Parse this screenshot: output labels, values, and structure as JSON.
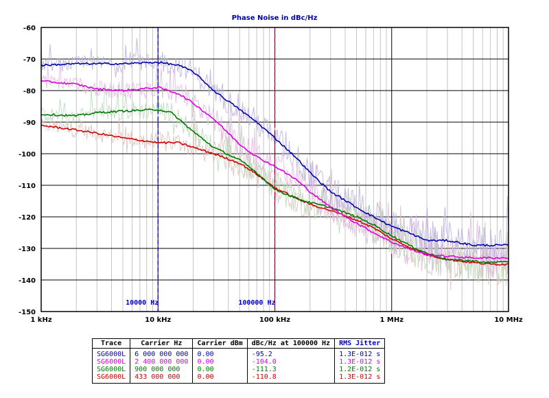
{
  "chart_data": {
    "type": "line",
    "title": "Phase Noise in dBc/Hz",
    "x_scale": "log",
    "xlim": [
      1000,
      10000000
    ],
    "ylim": [
      -150,
      -60
    ],
    "x_ticks": [
      {
        "value": 1000,
        "label": "1 kHz"
      },
      {
        "value": 10000,
        "label": "10 kHz"
      },
      {
        "value": 100000,
        "label": "100 kHz"
      },
      {
        "value": 1000000,
        "label": "1 MHz"
      },
      {
        "value": 10000000,
        "label": "10 MHz"
      }
    ],
    "y_ticks": [
      {
        "value": -60,
        "label": "-60"
      },
      {
        "value": -70,
        "label": "-70"
      },
      {
        "value": -80,
        "label": "-80"
      },
      {
        "value": -90,
        "label": "-90"
      },
      {
        "value": -100,
        "label": "-100"
      },
      {
        "value": -110,
        "label": "-110"
      },
      {
        "value": -120,
        "label": "-120"
      },
      {
        "value": -130,
        "label": "-130"
      },
      {
        "value": -140,
        "label": "-140"
      },
      {
        "value": -150,
        "label": "-150"
      }
    ],
    "grid": true,
    "markers": [
      {
        "x": 10000,
        "label": "10000 Hz",
        "color": "#0000cc"
      },
      {
        "x": 100000,
        "label": "100000 Hz",
        "color": "#0000cc",
        "line_color": "#aa0044"
      }
    ],
    "series": [
      {
        "name": "SG6000L",
        "color": "#0000aa",
        "raw_color": "#b8b0dc",
        "x": [
          1000,
          2000,
          5000,
          10000,
          15000,
          20000,
          30000,
          50000,
          70000,
          100000,
          150000,
          200000,
          300000,
          500000,
          700000,
          1000000,
          1500000,
          2000000,
          3000000,
          5000000,
          7000000,
          10000000
        ],
        "y": [
          -72,
          -71.5,
          -71.5,
          -71,
          -72,
          -74,
          -80,
          -86,
          -90,
          -95,
          -101,
          -106,
          -112,
          -117,
          -120,
          -123,
          -125.5,
          -127.5,
          -127.5,
          -129,
          -129,
          -129
        ]
      },
      {
        "name": "SG6000L",
        "color": "#dd00dd",
        "raw_color": "#e0b8e0",
        "x": [
          1000,
          2000,
          3000,
          5000,
          10000,
          15000,
          20000,
          30000,
          50000,
          70000,
          100000,
          150000,
          200000,
          300000,
          500000,
          700000,
          1000000,
          1500000,
          2000000,
          3000000,
          5000000,
          7000000,
          10000000
        ],
        "y": [
          -77,
          -78,
          -79.5,
          -80,
          -79,
          -81,
          -84,
          -89,
          -97,
          -101,
          -104,
          -108,
          -112,
          -117,
          -122,
          -125,
          -128,
          -130.5,
          -132,
          -132.5,
          -133,
          -133,
          -133
        ]
      },
      {
        "name": "SG6000L",
        "color": "#007700",
        "raw_color": "#b8d8b8",
        "x": [
          1000,
          2000,
          3000,
          5000,
          10000,
          13000,
          15000,
          20000,
          30000,
          50000,
          70000,
          100000,
          150000,
          200000,
          300000,
          500000,
          700000,
          1000000,
          1500000,
          2000000,
          3000000,
          5000000,
          7000000,
          10000000
        ],
        "y": [
          -87.5,
          -88,
          -87,
          -86.5,
          -86,
          -87,
          -89,
          -93,
          -98,
          -102,
          -106,
          -111.3,
          -114,
          -115.5,
          -117,
          -120,
          -122.5,
          -126,
          -129.5,
          -131.5,
          -133.5,
          -134,
          -134.5,
          -134
        ]
      },
      {
        "name": "SG6000L",
        "color": "#cc0000",
        "raw_color": "#dcc0b8",
        "x": [
          1000,
          2000,
          3000,
          5000,
          10000,
          15000,
          20000,
          30000,
          50000,
          70000,
          100000,
          150000,
          200000,
          300000,
          500000,
          700000,
          1000000,
          1500000,
          2000000,
          3000000,
          5000000,
          7000000,
          10000000
        ],
        "y": [
          -91,
          -92.5,
          -93.5,
          -95,
          -96.5,
          -96.5,
          -98,
          -100,
          -103,
          -106.5,
          -110.8,
          -114,
          -116,
          -118,
          -121,
          -123.5,
          -127,
          -130,
          -132,
          -133.5,
          -134.5,
          -135,
          -135
        ]
      }
    ]
  },
  "table": {
    "headers": [
      "Trace",
      "Carrier Hz",
      "Carrier dBm",
      "dBc/Hz at 100000 Hz",
      "RMS Jitter"
    ],
    "rows": [
      {
        "trace": "SG6000L",
        "carrier_hz": "6 000 000 000",
        "carrier_dbm": "0.00",
        "dbc": "-95.2",
        "jitter": "1.3E-012 s",
        "color": "#0000aa"
      },
      {
        "trace": "SG6000L",
        "carrier_hz": "2 400 000 000",
        "carrier_dbm": "0.00",
        "dbc": "-104.0",
        "jitter": "1.3E-012 s",
        "color": "#dd00dd"
      },
      {
        "trace": "SG6000L",
        "carrier_hz": "900 000 000",
        "carrier_dbm": "0.00",
        "dbc": "-111.3",
        "jitter": "1.2E-012 s",
        "color": "#007700"
      },
      {
        "trace": "SG6000L",
        "carrier_hz": "433 000 000",
        "carrier_dbm": "0.00",
        "dbc": "-110.8",
        "jitter": "1.3E-012 s",
        "color": "#cc0000"
      }
    ]
  }
}
